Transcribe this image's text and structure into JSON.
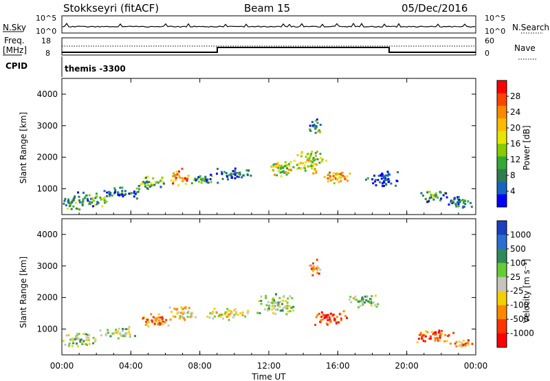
{
  "header": {
    "station": "Stokkseyri (fitACF)",
    "beam": "Beam 15",
    "date": "05/Dec/2016"
  },
  "sky_panel": {
    "left_label": "N.Sky",
    "left_ticks": [
      "10^5",
      "10^0"
    ],
    "right_label": "N.Search",
    "right_ticks": [
      "10^5",
      "10^0"
    ]
  },
  "freq_panel": {
    "left_label_line1": "Freq.",
    "left_label_line2": "[MHz]",
    "left_ticks": [
      "18",
      "8"
    ],
    "right_label": "Nave",
    "right_ticks": [
      "60",
      "0"
    ]
  },
  "cpid": {
    "label": "CPID",
    "value": "themis -3300"
  },
  "chart_data": [
    {
      "type": "heatmap",
      "title": "Power",
      "ylabel": "Slant Range [km]",
      "yticks": [
        "1000",
        "2000",
        "3000",
        "4000"
      ],
      "ylim": [
        180,
        4500
      ],
      "xlim": [
        0,
        24
      ],
      "colorbar_label": "Power [dB]",
      "colorbar_ticks": [
        "28",
        "24",
        "20",
        "16",
        "12",
        "8",
        "4"
      ],
      "colorbar_colors": [
        "#ff0000",
        "#ff4400",
        "#ff8800",
        "#ffbb00",
        "#e6e600",
        "#88cc00",
        "#33aa33",
        "#2e7d4f",
        "#1565c0",
        "#0000ff"
      ],
      "blobs": [
        {
          "t": 0.5,
          "r": 600,
          "dt": 0.8,
          "dr": 250,
          "level": 0.6
        },
        {
          "t": 1.8,
          "r": 700,
          "dt": 1.0,
          "dr": 250,
          "level": 0.55
        },
        {
          "t": 3.5,
          "r": 900,
          "dt": 1.2,
          "dr": 200,
          "level": 0.45
        },
        {
          "t": 5.2,
          "r": 1200,
          "dt": 1.0,
          "dr": 250,
          "level": 0.6
        },
        {
          "t": 6.8,
          "r": 1400,
          "dt": 0.6,
          "dr": 280,
          "level": 0.95
        },
        {
          "t": 8.2,
          "r": 1300,
          "dt": 0.9,
          "dr": 200,
          "level": 0.5
        },
        {
          "t": 10.0,
          "r": 1500,
          "dt": 1.2,
          "dr": 200,
          "level": 0.45
        },
        {
          "t": 12.8,
          "r": 1700,
          "dt": 1.0,
          "dr": 300,
          "level": 0.75
        },
        {
          "t": 14.4,
          "r": 1900,
          "dt": 0.9,
          "dr": 400,
          "level": 0.8
        },
        {
          "t": 15.8,
          "r": 1400,
          "dt": 0.9,
          "dr": 250,
          "level": 0.9
        },
        {
          "t": 14.6,
          "r": 3000,
          "dt": 0.4,
          "dr": 300,
          "level": 0.5
        },
        {
          "t": 18.5,
          "r": 1300,
          "dt": 1.0,
          "dr": 300,
          "level": 0.35
        },
        {
          "t": 21.5,
          "r": 800,
          "dt": 1.0,
          "dr": 200,
          "level": 0.55
        },
        {
          "t": 23.0,
          "r": 600,
          "dt": 0.9,
          "dr": 250,
          "level": 0.4
        }
      ]
    },
    {
      "type": "heatmap",
      "title": "Velocity",
      "ylabel": "Slant Range [km]",
      "yticks": [
        "1000",
        "2000",
        "3000",
        "4000"
      ],
      "ylim": [
        180,
        4500
      ],
      "xlim": [
        0,
        24
      ],
      "xlabel": "Time UT",
      "xticks": [
        "00:00",
        "04:00",
        "08:00",
        "12:00",
        "16:00",
        "20:00",
        "00:00"
      ],
      "colorbar_label": "Velocity [m s⁻¹]",
      "colorbar_ticks": [
        "1000",
        "500",
        "100",
        "25",
        "-25",
        "-100",
        "-500",
        "-1000"
      ],
      "colorbar_colors": [
        "#1a3fbf",
        "#2a6fd0",
        "#2e8b57",
        "#66cc33",
        "#c8c4bc",
        "#f5d000",
        "#ff8800",
        "#ff3300",
        "#ff0000"
      ],
      "blobs": [
        {
          "t": 1.0,
          "r": 700,
          "dt": 1.2,
          "dr": 250,
          "level": 0.45
        },
        {
          "t": 3.2,
          "r": 900,
          "dt": 1.2,
          "dr": 200,
          "level": 0.45
        },
        {
          "t": 5.5,
          "r": 1300,
          "dt": 1.0,
          "dr": 250,
          "level": 0.72
        },
        {
          "t": 7.0,
          "r": 1500,
          "dt": 0.9,
          "dr": 250,
          "level": 0.6
        },
        {
          "t": 9.5,
          "r": 1500,
          "dt": 1.4,
          "dr": 200,
          "level": 0.55
        },
        {
          "t": 12.5,
          "r": 1800,
          "dt": 1.3,
          "dr": 350,
          "level": 0.45
        },
        {
          "t": 15.5,
          "r": 1400,
          "dt": 1.1,
          "dr": 250,
          "level": 0.9
        },
        {
          "t": 14.6,
          "r": 3000,
          "dt": 0.4,
          "dr": 300,
          "level": 0.7
        },
        {
          "t": 17.5,
          "r": 1900,
          "dt": 1.0,
          "dr": 250,
          "level": 0.45
        },
        {
          "t": 21.5,
          "r": 800,
          "dt": 1.2,
          "dr": 250,
          "level": 0.75
        },
        {
          "t": 23.2,
          "r": 550,
          "dt": 0.8,
          "dr": 150,
          "level": 0.7
        }
      ]
    }
  ]
}
